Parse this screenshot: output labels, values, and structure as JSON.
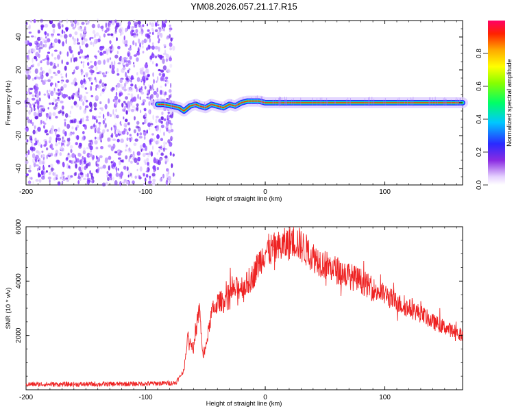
{
  "figure_title": "YM08.2026.057.21.17.R15",
  "colors": {
    "snr_line": "#ee2222",
    "background_points": "#7a30ff"
  },
  "chart_data": [
    {
      "type": "heatmap",
      "title": "YM08.2026.057.21.17.R15",
      "xlabel": "Height of straight line (km)",
      "ylabel": "Frequency (Hz)",
      "xlim": [
        -200,
        165
      ],
      "ylim": [
        -50,
        50
      ],
      "xticks": [
        "-200",
        "-100",
        "0",
        "100"
      ],
      "yticks": [
        "40",
        "20",
        "0",
        "-20",
        "-40"
      ],
      "noise_region_x": [
        -200,
        -80
      ],
      "signal_onset_x": -90,
      "ridge": {
        "x": [
          -90,
          -85,
          -78,
          -72,
          -68,
          -63,
          -58,
          -55,
          -50,
          -45,
          -40,
          -35,
          -30,
          -25,
          -20,
          -15,
          -10,
          -5,
          0,
          20,
          60,
          100,
          165
        ],
        "freq_hz": [
          -1,
          -1,
          -2,
          -3,
          -5,
          -2,
          -1,
          -2,
          -3,
          -1,
          -2,
          -3,
          -1,
          -2,
          0,
          1,
          1,
          1,
          0,
          0,
          0,
          0,
          0
        ]
      },
      "colorbar": {
        "label": "Normalized spectral amplitude",
        "ticks": [
          "0.0",
          "0.2",
          "0.4",
          "0.6",
          "0.8"
        ],
        "range": [
          0,
          1
        ]
      }
    },
    {
      "type": "line",
      "xlabel": "Height of straight line (km)",
      "ylabel": "SNR (10 * v/v)",
      "xlim": [
        -200,
        165
      ],
      "ylim": [
        0,
        6000
      ],
      "xticks": [
        "-200",
        "-100",
        "0",
        "100"
      ],
      "yticks": [
        "6000",
        "4000",
        "2000"
      ],
      "series": [
        {
          "name": "SNR",
          "x": [
            -200,
            -150,
            -100,
            -75,
            -68,
            -65,
            -60,
            -55,
            -52,
            -50,
            -45,
            -40,
            -35,
            -30,
            -25,
            -20,
            -15,
            -10,
            -5,
            0,
            10,
            20,
            25,
            30,
            40,
            50,
            60,
            70,
            80,
            90,
            100,
            110,
            120,
            130,
            140,
            150,
            165
          ],
          "y": [
            200,
            200,
            220,
            250,
            700,
            2000,
            1500,
            3000,
            1200,
            1500,
            2800,
            3200,
            3300,
            3500,
            3700,
            3800,
            3900,
            4200,
            4700,
            5100,
            5200,
            5400,
            5500,
            5300,
            4900,
            4600,
            4400,
            4200,
            4000,
            3700,
            3500,
            3200,
            3000,
            2800,
            2500,
            2300,
            2000
          ]
        }
      ]
    }
  ]
}
